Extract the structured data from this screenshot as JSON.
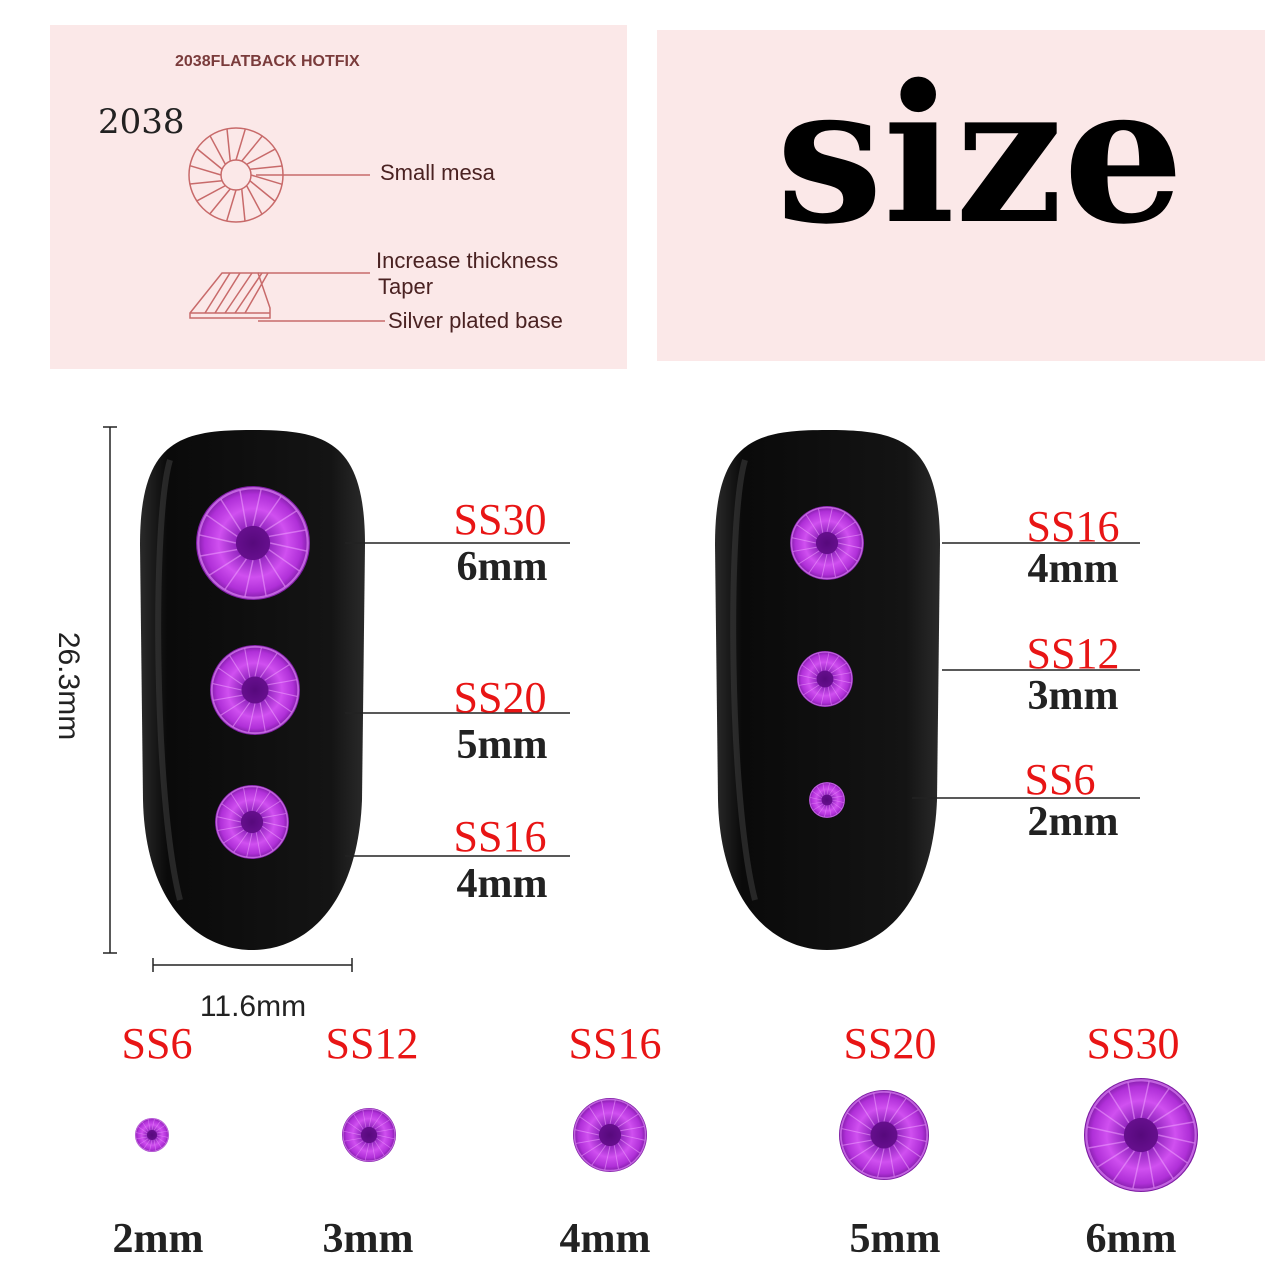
{
  "diagram_panel": {
    "heading": "2038FLATBACK HOTFIX",
    "model": "2038",
    "callouts": [
      "Small mesa",
      "Increase thickness",
      "Taper",
      "Silver plated base"
    ],
    "color": "#c86a6a",
    "background": "#fbe8e8"
  },
  "title_panel": {
    "title": "size",
    "background": "#fbe8e8"
  },
  "nail_dimensions": {
    "height": "26.3mm",
    "width": "11.6mm"
  },
  "nail_left": [
    {
      "code": "SS30",
      "size": "6mm",
      "mm": 6
    },
    {
      "code": "SS20",
      "size": "5mm",
      "mm": 5
    },
    {
      "code": "SS16",
      "size": "4mm",
      "mm": 4
    }
  ],
  "nail_right": [
    {
      "code": "SS16",
      "size": "4mm",
      "mm": 4
    },
    {
      "code": "SS12",
      "size": "3mm",
      "mm": 3
    },
    {
      "code": "SS6",
      "size": "2mm",
      "mm": 2
    }
  ],
  "size_row": [
    {
      "code": "SS6",
      "size": "2mm",
      "mm": 2
    },
    {
      "code": "SS12",
      "size": "3mm",
      "mm": 3
    },
    {
      "code": "SS16",
      "size": "4mm",
      "mm": 4
    },
    {
      "code": "SS20",
      "size": "5mm",
      "mm": 5
    },
    {
      "code": "SS30",
      "size": "6mm",
      "mm": 6
    }
  ],
  "colors": {
    "label_red": "#e81515",
    "gem": "#b530d8",
    "nail": "#111111"
  }
}
